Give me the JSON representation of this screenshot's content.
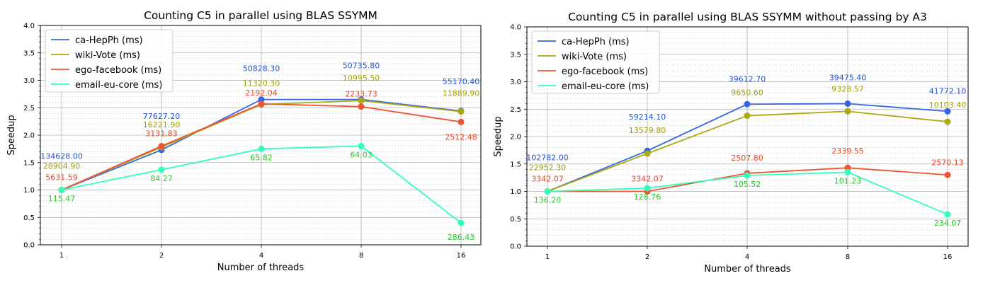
{
  "chart_data": [
    {
      "type": "line",
      "title": "Counting C5 in parallel using BLAS SSYMM",
      "xlabel": "Number of threads",
      "ylabel": "Speedup",
      "x": [
        1,
        2,
        4,
        8,
        16
      ],
      "x_scale": "log2",
      "x_tick_labels": [
        "1",
        "2",
        "4",
        "8",
        "16"
      ],
      "ylim": [
        0,
        4
      ],
      "y_tick_labels": [
        "0.0",
        "0.5",
        "1.0",
        "1.5",
        "2.0",
        "2.5",
        "3.0",
        "3.5",
        "4.0"
      ],
      "grid": true,
      "legend_position": "top-left",
      "series": [
        {
          "name": "ca-HepPh (ms)",
          "color": "#3366e0",
          "label_color": "#2255dd",
          "values": [
            1.0,
            1.73,
            2.65,
            2.65,
            2.44
          ],
          "labels": [
            "134628.00",
            "77627.20",
            "50828.30",
            "50735.80",
            "55170.40"
          ]
        },
        {
          "name": "wiki-Vote (ms)",
          "color": "#aaaa11",
          "label_color": "#a0a000",
          "values": [
            1.0,
            1.78,
            2.56,
            2.63,
            2.43
          ],
          "labels": [
            "28904.90",
            "16221.90",
            "11320.30",
            "10995.50",
            "11889.90"
          ]
        },
        {
          "name": "ego-facebook (ms)",
          "color": "#ee5533",
          "label_color": "#ee4422",
          "values": [
            1.0,
            1.8,
            2.57,
            2.52,
            2.24
          ],
          "labels": [
            "5631.59",
            "3131.83",
            "2192.04",
            "2233.73",
            "2512.48"
          ]
        },
        {
          "name": "email-eu-core (ms)",
          "color": "#33ffbb",
          "label_color": "#22cc22",
          "values": [
            1.0,
            1.37,
            1.75,
            1.8,
            0.4
          ],
          "labels": [
            "115.47",
            "84.27",
            "65.82",
            "64.03",
            "286.43"
          ]
        }
      ]
    },
    {
      "type": "line",
      "title": "Counting C5 in parallel using BLAS SSYMM without passing by A3",
      "xlabel": "Number of threads",
      "ylabel": "Speedup",
      "x": [
        1,
        2,
        4,
        8,
        16
      ],
      "x_scale": "log2",
      "x_tick_labels": [
        "1",
        "2",
        "4",
        "8",
        "16"
      ],
      "ylim": [
        0,
        4
      ],
      "y_tick_labels": [
        "0.0",
        "0.5",
        "1.0",
        "1.5",
        "2.0",
        "2.5",
        "3.0",
        "3.5",
        "4.0"
      ],
      "grid": true,
      "legend_position": "top-left",
      "series": [
        {
          "name": "ca-HepPh (ms)",
          "color": "#3366e0",
          "label_color": "#2255dd",
          "values": [
            1.0,
            1.74,
            2.59,
            2.6,
            2.46
          ],
          "labels": [
            "102782.00",
            "59214.10",
            "39612.70",
            "39475.40",
            "41772.10"
          ]
        },
        {
          "name": "wiki-Vote (ms)",
          "color": "#aaaa11",
          "label_color": "#a0a000",
          "values": [
            1.0,
            1.69,
            2.38,
            2.46,
            2.27
          ],
          "labels": [
            "22952.30",
            "13579.80",
            "9650.60",
            "9328.57",
            "10103.40"
          ]
        },
        {
          "name": "ego-facebook (ms)",
          "color": "#ee5533",
          "label_color": "#ee4422",
          "values": [
            1.0,
            1.0,
            1.33,
            1.43,
            1.3
          ],
          "labels": [
            "3342.07",
            "3342.07",
            "2507.80",
            "2339.55",
            "2570.13"
          ]
        },
        {
          "name": "email-eu-core (ms)",
          "color": "#33ffbb",
          "label_color": "#22cc22",
          "values": [
            1.0,
            1.06,
            1.29,
            1.35,
            0.58
          ],
          "labels": [
            "136.20",
            "128.76",
            "105.52",
            "101.23",
            "234.07"
          ]
        }
      ]
    }
  ]
}
